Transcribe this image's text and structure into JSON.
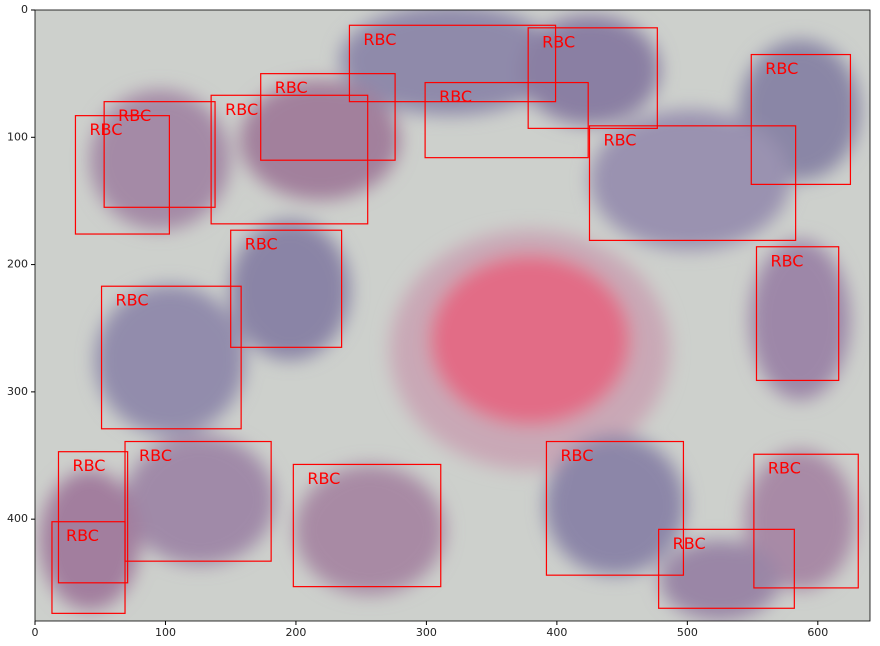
{
  "chart_data": {
    "type": "image",
    "color": "#ff0000",
    "xlim": [
      0,
      640
    ],
    "ylim": [
      480,
      0
    ],
    "xticks": [
      0,
      100,
      200,
      300,
      400,
      500,
      600
    ],
    "yticks": [
      0,
      100,
      200,
      300,
      400
    ],
    "boxes": [
      {
        "label": "RBC",
        "x": [
          241,
          399
        ],
        "y": [
          12,
          72
        ]
      },
      {
        "label": "RBC",
        "x": [
          378,
          477
        ],
        "y": [
          14,
          93
        ]
      },
      {
        "label": "RBC",
        "x": [
          549,
          625
        ],
        "y": [
          35,
          137
        ]
      },
      {
        "label": "RBC",
        "x": [
          173,
          276
        ],
        "y": [
          50,
          118
        ]
      },
      {
        "label": "RBC",
        "x": [
          299,
          424
        ],
        "y": [
          57,
          116
        ]
      },
      {
        "label": "RBC",
        "x": [
          135,
          255
        ],
        "y": [
          67,
          168
        ]
      },
      {
        "label": "RBC",
        "x": [
          53,
          138
        ],
        "y": [
          72,
          155
        ]
      },
      {
        "label": "RBC",
        "x": [
          31,
          103
        ],
        "y": [
          83,
          176
        ]
      },
      {
        "label": "RBC",
        "x": [
          425,
          583
        ],
        "y": [
          91,
          181
        ]
      },
      {
        "label": "RBC",
        "x": [
          150,
          235
        ],
        "y": [
          173,
          265
        ]
      },
      {
        "label": "RBC",
        "x": [
          553,
          616
        ],
        "y": [
          186,
          291
        ]
      },
      {
        "label": "RBC",
        "x": [
          51,
          158
        ],
        "y": [
          217,
          329
        ]
      },
      {
        "label": "RBC",
        "x": [
          69,
          181
        ],
        "y": [
          339,
          433
        ]
      },
      {
        "label": "RBC",
        "x": [
          18,
          71
        ],
        "y": [
          347,
          450
        ]
      },
      {
        "label": "RBC",
        "x": [
          198,
          311
        ],
        "y": [
          357,
          453
        ]
      },
      {
        "label": "RBC",
        "x": [
          392,
          497
        ],
        "y": [
          339,
          444
        ]
      },
      {
        "label": "RBC",
        "x": [
          551,
          631
        ],
        "y": [
          349,
          454
        ]
      },
      {
        "label": "RBC",
        "x": [
          478,
          582
        ],
        "y": [
          408,
          470
        ]
      },
      {
        "label": "RBC",
        "x": [
          13,
          69
        ],
        "y": [
          402,
          474
        ]
      }
    ]
  }
}
